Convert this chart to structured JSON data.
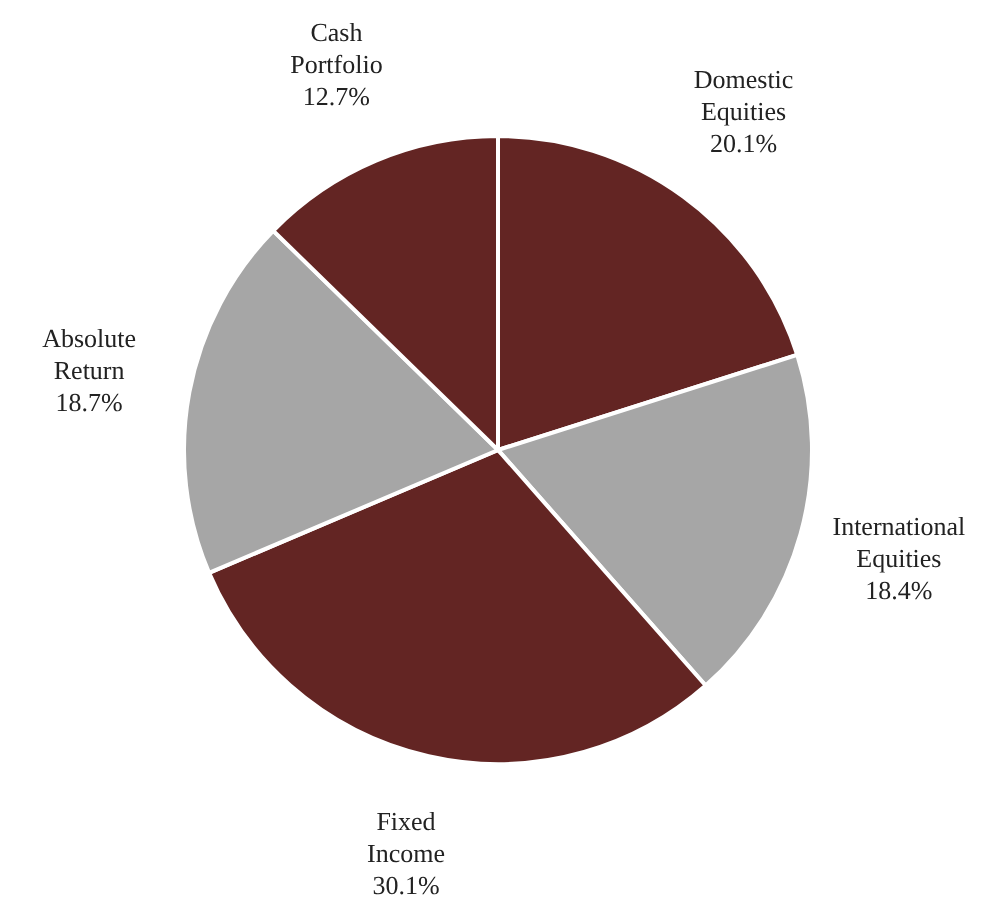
{
  "chart_data": {
    "type": "pie",
    "categories": [
      "Domestic Equities",
      "International Equities",
      "Fixed Income",
      "Absolute Return",
      "Cash Portfolio"
    ],
    "values": [
      20.1,
      18.4,
      30.1,
      18.7,
      12.7
    ],
    "colors": [
      "#632523",
      "#a6a6a6",
      "#632523",
      "#a6a6a6",
      "#632523"
    ],
    "value_labels": [
      "20.1%",
      "18.4%",
      "30.1%",
      "18.7%",
      "12.7%"
    ]
  }
}
